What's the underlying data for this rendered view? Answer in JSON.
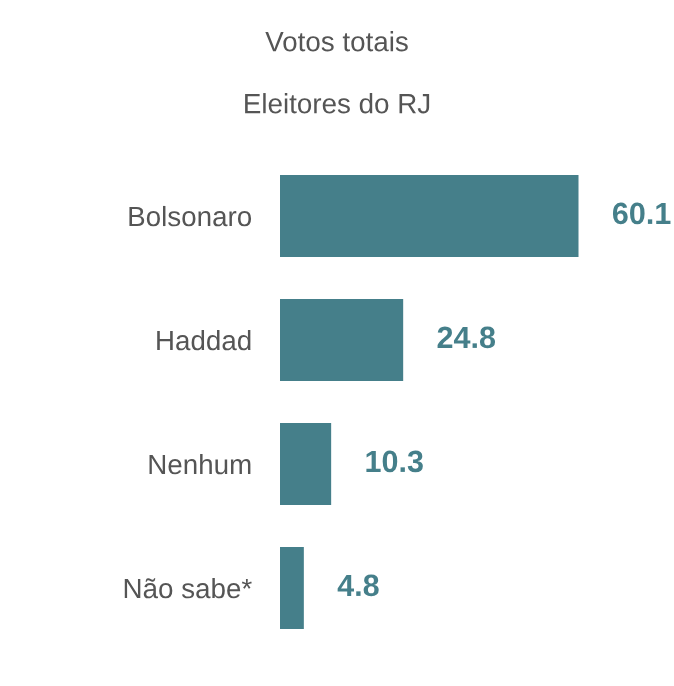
{
  "chart_data": {
    "type": "bar",
    "orientation": "horizontal",
    "title": "Votos totais",
    "subtitle": "Eleitores do RJ",
    "categories": [
      "Bolsonaro",
      "Haddad",
      "Nenhum",
      "Não sabe*"
    ],
    "values": [
      60.1,
      24.8,
      10.3,
      4.8
    ],
    "color": "#457f8a",
    "data_labels": true,
    "grid": false,
    "legend": false
  }
}
